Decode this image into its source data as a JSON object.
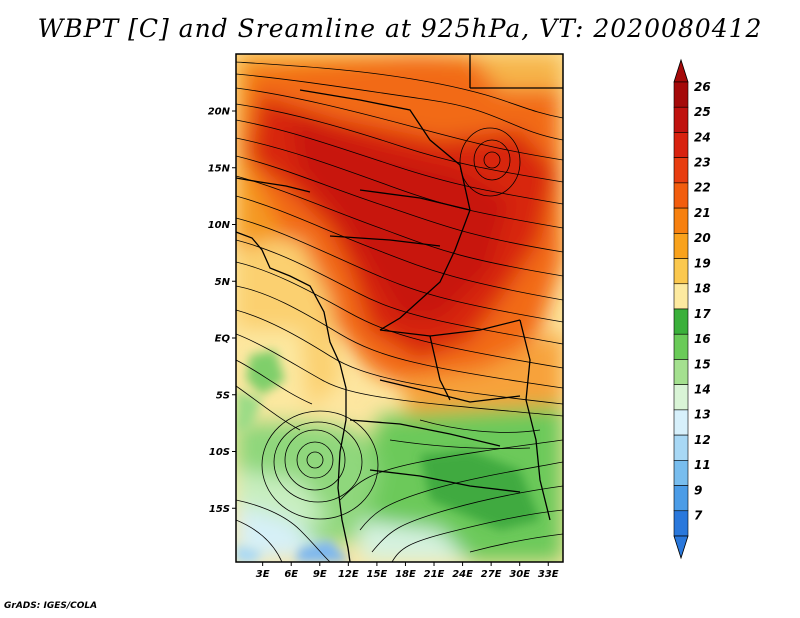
{
  "title": "WBPT [C] and Sreamline at 925hPa, VT: 2020080412",
  "credit": "GrADS: IGES/COLA",
  "map": {
    "lat_labels": [
      "20N",
      "15N",
      "10N",
      "5N",
      "EQ",
      "5S",
      "10S",
      "15S"
    ],
    "lat_values": [
      20,
      15,
      10,
      5,
      0,
      -5,
      -10,
      -15
    ],
    "lon_labels": [
      "3E",
      "6E",
      "9E",
      "12E",
      "15E",
      "18E",
      "21E",
      "24E",
      "27E",
      "30E",
      "33E"
    ],
    "lon_values": [
      3,
      6,
      9,
      12,
      15,
      18,
      21,
      24,
      27,
      30,
      33
    ]
  },
  "colorbar": {
    "labels": [
      "26",
      "25",
      "24",
      "23",
      "22",
      "21",
      "20",
      "19",
      "18",
      "17",
      "16",
      "15",
      "14",
      "13",
      "12",
      "11",
      "9",
      "7"
    ],
    "colors": [
      "#a50a0a",
      "#c0120f",
      "#d8220f",
      "#e83d10",
      "#f25d0e",
      "#f7800f",
      "#f9a21c",
      "#fbc84e",
      "#fdeaa0",
      "#3ab03a",
      "#6acb58",
      "#a4e08f",
      "#d9f4d6",
      "#d7f0fb",
      "#a8d8f5",
      "#78bdee",
      "#4b9ce7",
      "#2a78dc"
    ]
  }
}
